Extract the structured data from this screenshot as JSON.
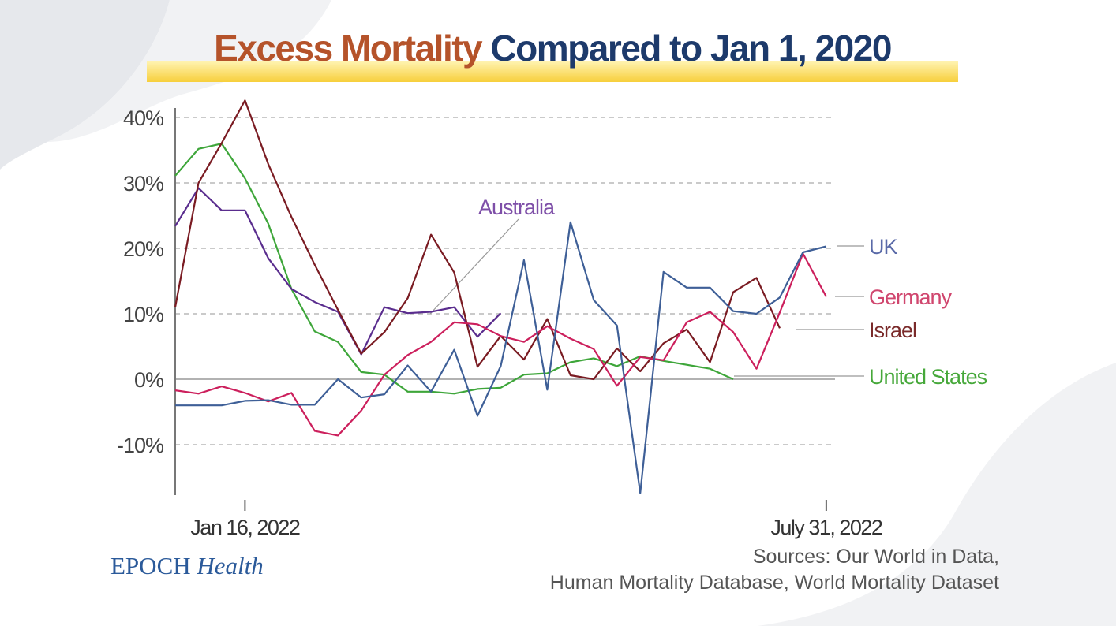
{
  "title": {
    "part1": "Excess Mortality",
    "part2": "Compared to Jan 1, 2020"
  },
  "logo": {
    "brand": "EPOCH",
    "sub": "Health"
  },
  "sources": {
    "line1": "Sources: Our World in Data,",
    "line2": "Human Mortality Database, World Mortality Dataset"
  },
  "colors": {
    "title_accent": "#b5532a",
    "title_main": "#1d3a6b",
    "highlight": "#f7cf3c"
  },
  "chart_data": {
    "type": "line",
    "title": "Excess Mortality Compared to Jan 1, 2020",
    "xlabel": "",
    "ylabel": "",
    "ylim": [
      -18,
      43
    ],
    "yticks": [
      -10,
      0,
      10,
      20,
      30,
      40
    ],
    "ytick_labels": [
      "-10%",
      "0%",
      "10%",
      "20%",
      "30%",
      "40%"
    ],
    "x_count": 29,
    "xticks": [
      {
        "index": 3,
        "label": "Jan 16, 2022"
      },
      {
        "index": 28,
        "label": "July 31, 2022"
      }
    ],
    "grid": true,
    "series": [
      {
        "name": "UK",
        "color": "#3e5f97",
        "label_color": "#5a6aa8",
        "values": [
          -4.0,
          -4.0,
          -4.0,
          -3.3,
          -3.2,
          -3.9,
          -3.9,
          0,
          -2.8,
          -2.3,
          2.1,
          -1.9,
          4.5,
          -5.6,
          2.0,
          18.2,
          -1.6,
          24.0,
          12.1,
          8.2,
          -17.4,
          16.4,
          14.0,
          14.0,
          10.4,
          10.0,
          12.5,
          19.4,
          20.3
        ]
      },
      {
        "name": "Germany",
        "color": "#cc1f5c",
        "label_color": "#d0466e",
        "values": [
          -1.7,
          -2.2,
          -1.1,
          -2.1,
          -3.4,
          -2.1,
          -7.9,
          -8.6,
          -4.8,
          0.7,
          3.7,
          5.7,
          8.7,
          8.4,
          6.6,
          5.7,
          8.1,
          6.2,
          4.6,
          -1.0,
          3.4,
          2.9,
          8.7,
          10.3,
          7.2,
          1.6,
          10.2,
          19.2,
          12.6
        ]
      },
      {
        "name": "Israel",
        "color": "#7a1b22",
        "label_color": "#7a2a2a",
        "values": [
          11.0,
          30.0,
          36.1,
          42.6,
          32.9,
          24.8,
          17.5,
          10.6,
          3.9,
          7.2,
          12.4,
          22.1,
          16.3,
          1.9,
          6.6,
          3.0,
          9.2,
          0.6,
          0.0,
          4.7,
          1.2,
          5.5,
          7.6,
          2.6,
          13.3,
          15.5,
          7.8,
          null,
          null
        ]
      },
      {
        "name": "United States",
        "color": "#3ea63a",
        "label_color": "#46a83a",
        "values": [
          31.1,
          35.2,
          36.0,
          30.7,
          23.8,
          13.8,
          7.3,
          5.7,
          1.1,
          0.7,
          -1.9,
          -1.9,
          -2.2,
          -1.5,
          -1.3,
          0.7,
          0.9,
          2.6,
          3.2,
          2.0,
          3.5,
          2.8,
          2.2,
          1.6,
          0.0,
          null,
          null,
          null,
          null
        ]
      },
      {
        "name": "Australia",
        "color": "#5a2d8e",
        "label_color": "#7e4fa8",
        "values": [
          23.4,
          29.2,
          25.8,
          25.8,
          18.5,
          13.8,
          11.8,
          10.3,
          3.8,
          11.0,
          10.1,
          10.3,
          11.0,
          6.5,
          10.1,
          null,
          null,
          null,
          null,
          null,
          null,
          null,
          null,
          null,
          null,
          null,
          null,
          null,
          null
        ]
      }
    ]
  }
}
